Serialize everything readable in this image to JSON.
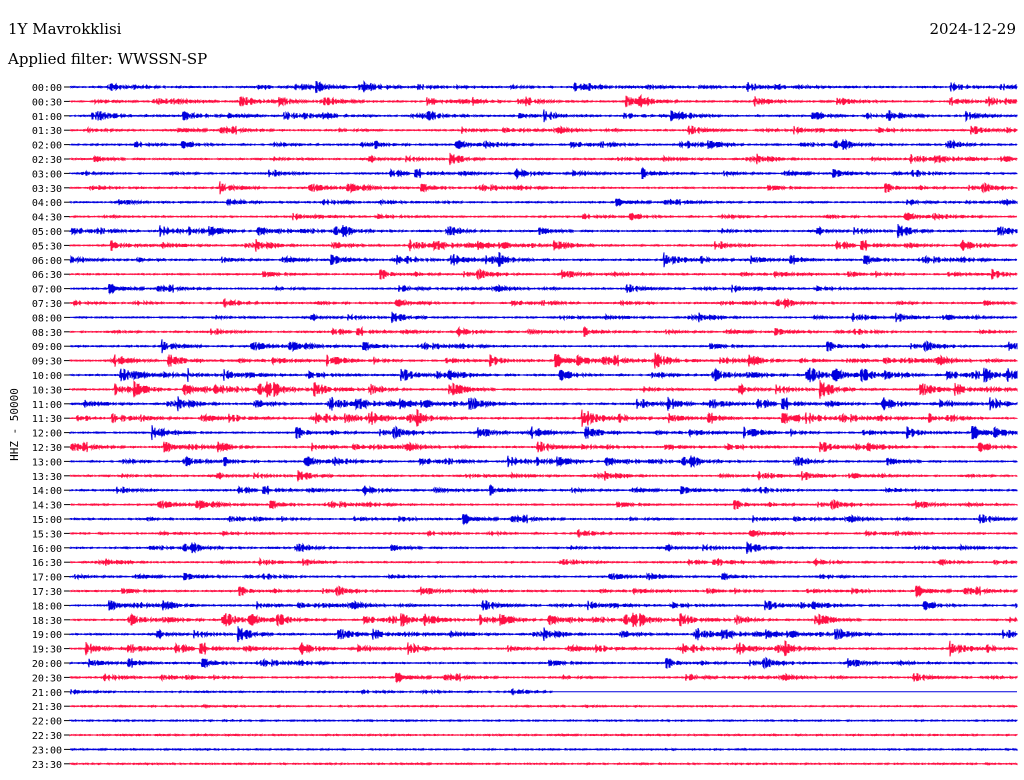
{
  "header": {
    "title": "1Y Mavrokklisi",
    "date": "2024-12-29",
    "filter": "Applied filter: WWSSN-SP"
  },
  "colors": {
    "even_trace": "#0000dd",
    "odd_trace": "#ff1144"
  },
  "chart_data": {
    "type": "line",
    "title": "1Y Mavrokklisi",
    "ylabel": "HHZ - 50000",
    "rows": [
      "00:00",
      "00:30",
      "01:00",
      "01:30",
      "02:00",
      "02:30",
      "03:00",
      "03:30",
      "04:00",
      "04:30",
      "05:00",
      "05:30",
      "06:00",
      "06:30",
      "07:00",
      "07:30",
      "08:00",
      "08:30",
      "09:00",
      "09:30",
      "10:00",
      "10:30",
      "11:00",
      "11:30",
      "12:00",
      "12:30",
      "13:00",
      "13:30",
      "14:00",
      "14:30",
      "15:00",
      "15:30",
      "16:00",
      "16:30",
      "17:00",
      "17:30",
      "18:00",
      "18:30",
      "19:00",
      "19:30",
      "20:00",
      "20:30",
      "21:00",
      "21:30",
      "22:00",
      "22:30",
      "23:00",
      "23:30"
    ],
    "activity": [
      0.7,
      0.8,
      0.7,
      0.65,
      0.6,
      0.6,
      0.65,
      0.7,
      0.45,
      0.55,
      0.7,
      0.75,
      0.8,
      0.75,
      0.6,
      0.5,
      0.55,
      0.55,
      0.75,
      0.9,
      0.95,
      0.95,
      0.9,
      0.95,
      0.9,
      0.8,
      0.7,
      0.55,
      0.6,
      0.7,
      0.65,
      0.45,
      0.6,
      0.4,
      0.55,
      0.7,
      0.75,
      0.85,
      0.8,
      0.85,
      0.8,
      0.6,
      0.35,
      0.05,
      0.02,
      0.02,
      0.02,
      0.02
    ],
    "active_until": [
      1,
      1,
      1,
      1,
      1,
      1,
      1,
      1,
      1,
      1,
      1,
      1,
      1,
      1,
      1,
      1,
      1,
      1,
      1,
      1,
      1,
      1,
      1,
      1,
      1,
      1,
      1,
      1,
      1,
      1,
      1,
      1,
      1,
      1,
      1,
      1,
      1,
      1,
      1,
      1,
      1,
      1,
      0.51,
      1,
      1,
      1,
      1,
      1
    ]
  }
}
